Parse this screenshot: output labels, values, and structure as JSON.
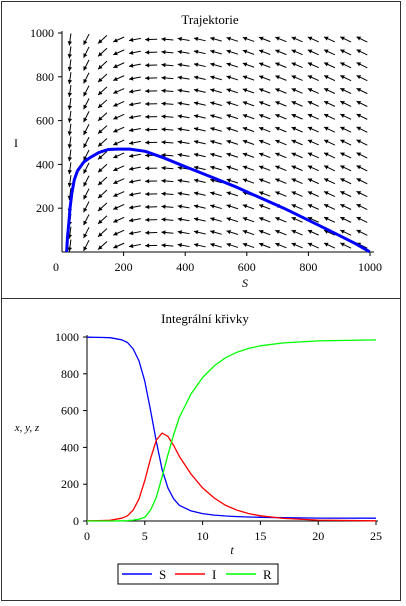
{
  "chart_data": [
    {
      "type": "line",
      "subtype": "phase-portrait-with-direction-field",
      "title": "Trajektorie",
      "xlabel": "S",
      "ylabel": "I",
      "xlim": [
        0,
        1000
      ],
      "ylim": [
        0,
        1000
      ],
      "xticks": [
        "0",
        "200",
        "400",
        "600",
        "800",
        "1000"
      ],
      "yticks": [
        "200",
        "400",
        "600",
        "800",
        "1000"
      ],
      "grid": false,
      "direction_field": {
        "arrow_color": "#000000",
        "grid_size": [
          19,
          17
        ]
      },
      "series": [
        {
          "color": "#0000ff",
          "x": [
            999,
            950,
            880,
            800,
            720,
            640,
            560,
            480,
            400,
            330,
            270,
            220,
            180,
            150,
            120,
            90,
            70,
            50,
            40,
            32,
            26,
            22,
            18,
            16,
            15
          ],
          "y": [
            1,
            40,
            90,
            145,
            200,
            250,
            300,
            345,
            390,
            430,
            460,
            470,
            470,
            468,
            455,
            430,
            410,
            370,
            330,
            270,
            200,
            130,
            70,
            20,
            0
          ]
        }
      ]
    },
    {
      "type": "line",
      "title": "Integrální křivky",
      "xlabel": "t",
      "ylabel": "x, y, z",
      "xlim": [
        0,
        25
      ],
      "ylim": [
        0,
        1000
      ],
      "xticks": [
        "0",
        "5",
        "10",
        "15",
        "20",
        "25"
      ],
      "yticks": [
        "0",
        "200",
        "400",
        "600",
        "800",
        "1000"
      ],
      "grid": false,
      "legend": "bottom",
      "x": [
        0,
        1,
        2,
        3,
        3.5,
        4,
        4.5,
        5,
        5.5,
        6,
        6.5,
        7,
        7.5,
        8,
        9,
        10,
        11,
        12,
        13,
        14,
        15,
        17,
        20,
        25
      ],
      "series": [
        {
          "name": "S",
          "color": "#0000ff",
          "values": [
            999,
            998,
            996,
            985,
            970,
            935,
            870,
            760,
            600,
            430,
            280,
            180,
            120,
            85,
            55,
            40,
            32,
            27,
            24,
            22,
            20,
            18,
            16,
            15
          ]
        },
        {
          "name": "I",
          "color": "#ff0000",
          "values": [
            1,
            2,
            4,
            15,
            28,
            60,
            120,
            220,
            340,
            440,
            478,
            460,
            410,
            350,
            255,
            180,
            125,
            85,
            58,
            40,
            28,
            14,
            5,
            1
          ]
        },
        {
          "name": "R",
          "color": "#00ff00",
          "values": [
            0,
            0,
            0,
            1,
            2,
            5,
            10,
            20,
            60,
            130,
            240,
            360,
            470,
            565,
            690,
            780,
            843,
            888,
            918,
            938,
            952,
            968,
            979,
            984
          ]
        }
      ]
    }
  ]
}
